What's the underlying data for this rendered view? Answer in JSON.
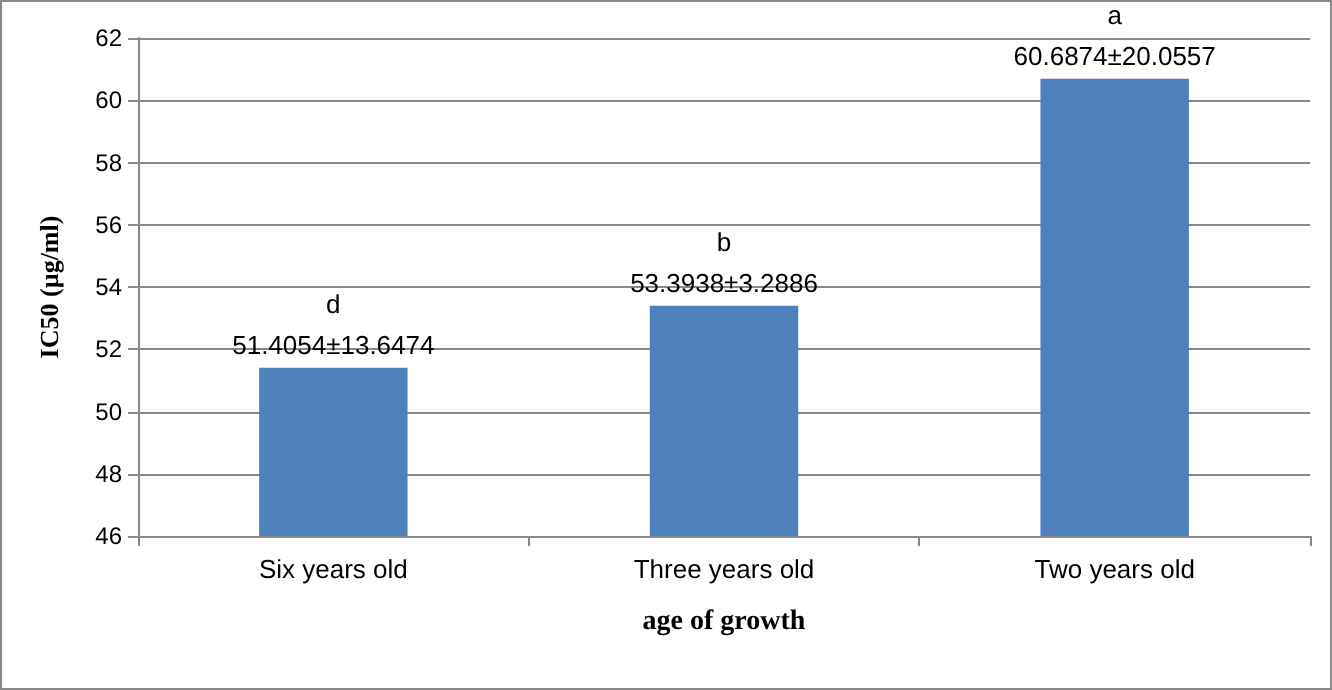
{
  "chart_data": {
    "type": "bar",
    "xlabel": "age of growth",
    "ylabel": "IC50 (µg/ml)",
    "categories": [
      "Six years old",
      "Three years old",
      "Two years old"
    ],
    "values": [
      51.4054,
      53.3938,
      60.6874
    ],
    "value_labels": [
      "51.4054±13.6474",
      "53.3938±3.2886",
      "60.6874±20.0557"
    ],
    "color": "#4f81bd",
    "annotations": [
      {
        "text": "d",
        "x": "Six years old",
        "y": 51.4054
      },
      {
        "text": "b",
        "x": "Three years old",
        "y": 53.3938
      },
      {
        "text": "a",
        "x": "Two years old",
        "y": 60.6874
      }
    ],
    "ylim": [
      46,
      62
    ],
    "yticks": [
      46,
      48,
      50,
      52,
      54,
      56,
      58,
      60,
      62
    ],
    "grid": "y"
  }
}
